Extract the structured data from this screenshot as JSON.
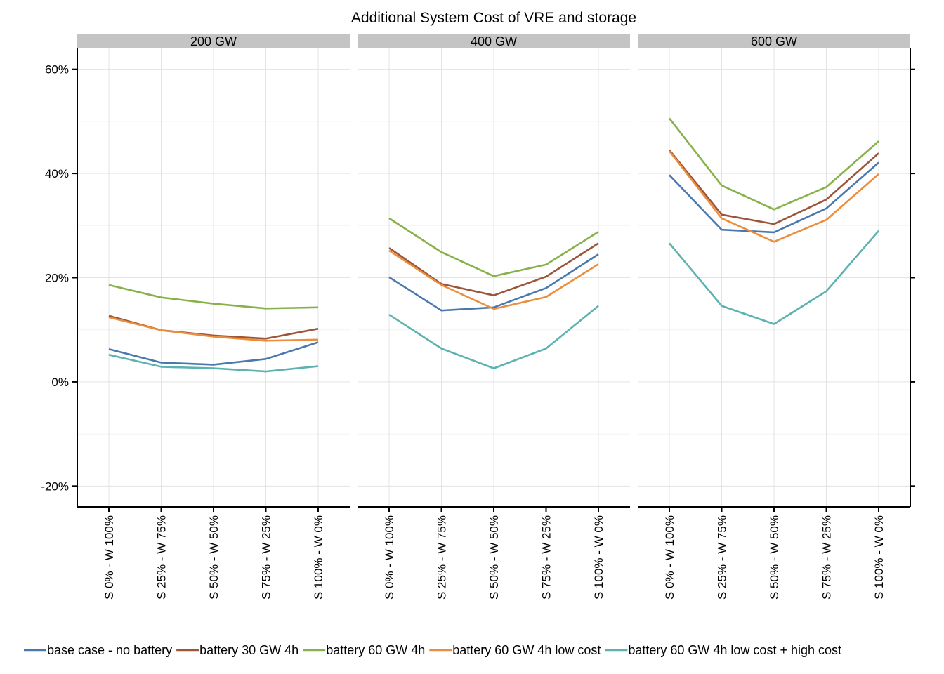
{
  "chart_data": {
    "type": "line",
    "title": "Additional System Cost of VRE and storage",
    "xlabel": "",
    "ylabel": "",
    "ylim": [
      -24,
      64
    ],
    "y_ticks": [
      -20,
      0,
      20,
      40,
      60
    ],
    "y_tick_labels": [
      "-20%",
      "0%",
      "20%",
      "40%",
      "60%"
    ],
    "categories": [
      "S 0% - W 100%",
      "S 25% - W 75%",
      "S 50% - W 50%",
      "S 75% - W 25%",
      "S 100% - W 0%"
    ],
    "grid": true,
    "legend_position": "bottom",
    "series_names": [
      "base case - no battery",
      "battery 30 GW 4h",
      "battery 60 GW 4h",
      "battery 60 GW 4h low cost",
      "battery 60 GW 4h low cost + high cost"
    ],
    "series_colors": [
      "#4a78ad",
      "#9c5538",
      "#88b14b",
      "#ec8d3b",
      "#5cb2b0"
    ],
    "panels": [
      {
        "label": "200 GW",
        "series": [
          {
            "name": "base case - no battery",
            "values": [
              6.3,
              3.7,
              3.3,
              4.4,
              7.6
            ]
          },
          {
            "name": "battery 30 GW 4h",
            "values": [
              12.7,
              9.9,
              8.9,
              8.3,
              10.2
            ]
          },
          {
            "name": "battery 60 GW 4h",
            "values": [
              18.6,
              16.2,
              15.0,
              14.1,
              14.3
            ]
          },
          {
            "name": "battery 60 GW 4h low cost",
            "values": [
              12.4,
              9.9,
              8.7,
              7.9,
              8.1
            ]
          },
          {
            "name": "battery 60 GW 4h low cost + high cost",
            "values": [
              5.2,
              2.9,
              2.6,
              2.0,
              3.0
            ]
          }
        ]
      },
      {
        "label": "400 GW",
        "series": [
          {
            "name": "base case - no battery",
            "values": [
              20.1,
              13.7,
              14.3,
              18.0,
              24.5
            ]
          },
          {
            "name": "battery 30 GW 4h",
            "values": [
              25.7,
              18.8,
              16.6,
              20.2,
              26.6
            ]
          },
          {
            "name": "battery 60 GW 4h",
            "values": [
              31.4,
              24.9,
              20.3,
              22.5,
              28.8
            ]
          },
          {
            "name": "battery 60 GW 4h low cost",
            "values": [
              25.2,
              18.6,
              14.0,
              16.3,
              22.6
            ]
          },
          {
            "name": "battery 60 GW 4h low cost + high cost",
            "values": [
              12.9,
              6.4,
              2.6,
              6.4,
              14.6
            ]
          }
        ]
      },
      {
        "label": "600 GW",
        "series": [
          {
            "name": "base case - no battery",
            "values": [
              39.7,
              29.2,
              28.7,
              33.3,
              42.1
            ]
          },
          {
            "name": "battery 30 GW 4h",
            "values": [
              44.5,
              32.1,
              30.3,
              35.0,
              43.9
            ]
          },
          {
            "name": "battery 60 GW 4h",
            "values": [
              50.6,
              37.7,
              33.1,
              37.4,
              46.2
            ]
          },
          {
            "name": "battery 60 GW 4h low cost",
            "values": [
              44.3,
              31.4,
              26.9,
              31.1,
              39.9
            ]
          },
          {
            "name": "battery 60 GW 4h low cost + high cost",
            "values": [
              26.6,
              14.6,
              11.1,
              17.4,
              29.0
            ]
          }
        ]
      }
    ]
  }
}
